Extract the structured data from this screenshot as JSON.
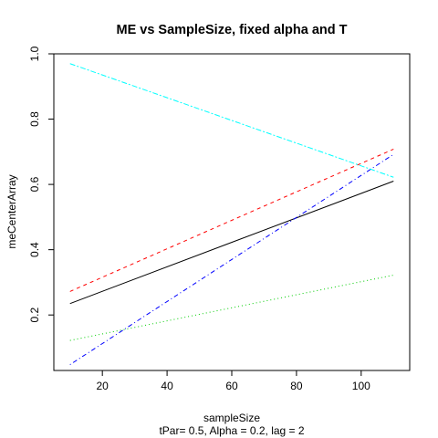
{
  "chart_data": {
    "type": "line",
    "title": "ME vs SampleSize, fixed alpha and T",
    "xlabel": "sampleSize",
    "ylabel": "meCenterArray",
    "subtitle": "tPar= 0.5, Alpha = 0.2, lag = 2",
    "xlim": [
      5,
      115
    ],
    "ylim": [
      0.03,
      1.0
    ],
    "xticks": [
      "20",
      "40",
      "60",
      "80",
      "100"
    ],
    "yticks": [
      "0.2",
      "0.4",
      "0.6",
      "0.8",
      "1.0"
    ],
    "x": [
      10,
      110
    ],
    "grid": false,
    "series": [
      {
        "color": "#000000",
        "dash": "",
        "values": [
          0.235,
          0.61
        ]
      },
      {
        "color": "#ff0000",
        "dash": "4,4",
        "values": [
          0.272,
          0.708
        ]
      },
      {
        "color": "#00cd00",
        "dash": "1,3",
        "values": [
          0.122,
          0.322
        ]
      },
      {
        "color": "#0000ff",
        "dash": "1,3,5,3",
        "values": [
          0.048,
          0.692
        ]
      },
      {
        "color": "#00ffff",
        "dash": "6,2,2,2",
        "values": [
          0.97,
          0.622
        ]
      }
    ]
  }
}
